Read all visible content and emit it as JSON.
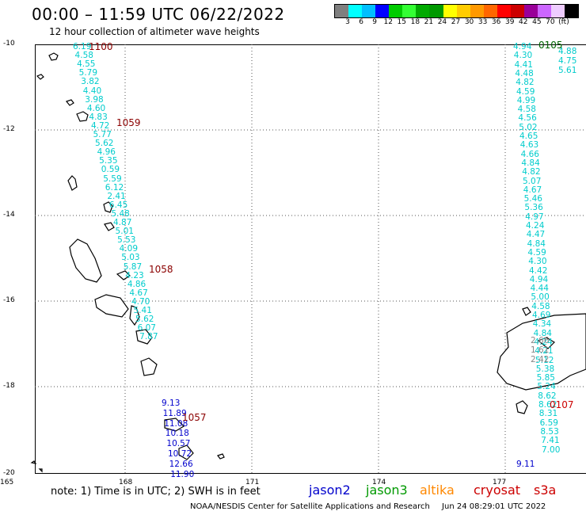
{
  "header": {
    "title": "00:00 – 11:59 UTC 06/22/2022",
    "subtitle": "12 hour collection of altimeter wave heights"
  },
  "legend": {
    "colors": [
      "#7f7f7f",
      "#00ffff",
      "#00bfff",
      "#0000ff",
      "#00cc00",
      "#33ff33",
      "#00aa00",
      "#009900",
      "#ffff00",
      "#ffcc00",
      "#ff9900",
      "#ff6600",
      "#ff0000",
      "#cc0000",
      "#990099",
      "#cc66ff",
      "#eeccff",
      "#000000"
    ],
    "labels": [
      "3",
      "6",
      "9",
      "12",
      "15",
      "18",
      "21",
      "24",
      "27",
      "30",
      "33",
      "36",
      "39",
      "42",
      "45",
      "70",
      "(ft)"
    ]
  },
  "axes": {
    "lat_labels": [
      "-10",
      "-12",
      "-14",
      "-16",
      "-18",
      "-20"
    ],
    "lon_labels": [
      "165",
      "168",
      "171",
      "174",
      "177"
    ]
  },
  "passes": [
    {
      "label": "1100",
      "color": "#8b0000"
    },
    {
      "label": "1059",
      "color": "#8b0000"
    },
    {
      "label": "1058",
      "color": "#8b0000"
    },
    {
      "label": "1057",
      "color": "#8b0000"
    },
    {
      "label": "0105",
      "color": "#006400"
    },
    {
      "label": "0107",
      "color": "#cc0000"
    }
  ],
  "track_values": {
    "west_cyan": [
      "6.19",
      "4.58",
      "4.55",
      "5.79",
      "3.82",
      "4.40",
      "3.98",
      "4.60",
      "4.83",
      "4.72",
      "5.77",
      "5.62",
      "4.96",
      "5.35",
      "0.59",
      "5.59",
      "6.12",
      "2.41",
      "6.45",
      "5.48",
      "4.87",
      "5.01",
      "5.53",
      "4.09",
      "5.03",
      "5.87",
      "4.23",
      "4.86",
      "4.67",
      "4.70",
      "5.41",
      "5.62",
      "6.07",
      "7.87"
    ],
    "west_blue": [
      "9.13",
      "11.89",
      "11.08",
      "10.18",
      "10.57",
      "10.72",
      "12.66",
      "11.90"
    ],
    "east_cyan": [
      "4.94",
      "4.30",
      "4.41",
      "4.48",
      "4.82",
      "4.59",
      "4.99",
      "4.58",
      "4.56",
      "5.02",
      "4.65",
      "4.63",
      "4.66",
      "4.84",
      "4.82",
      "5.07",
      "4.67",
      "5.46",
      "5.36",
      "4.97",
      "4.24",
      "4.47",
      "4.84",
      "4.59",
      "4.30",
      "4.42",
      "4.94",
      "4.44",
      "5.00",
      "4.58",
      "4.69",
      "4.34",
      "4.84",
      "4.24",
      "4.21",
      "5.12",
      "5.38",
      "5.85",
      "5.24",
      "8.62",
      "8.62",
      "8.31",
      "6.59",
      "8.53",
      "7.41",
      "7.00"
    ],
    "east_gray": [
      "2.66",
      "1.61",
      "2.42"
    ],
    "east_blue": [
      "9.11"
    ],
    "east_right": [
      "4.88",
      "4.75",
      "5.61"
    ]
  },
  "footer": {
    "note": "note: 1) Time is in UTC; 2) SWH is in feet",
    "satellites": [
      "jason2",
      "jason3",
      "altika",
      "cryosat",
      "s3a"
    ],
    "sat_colors": [
      "#0000cc",
      "#009900",
      "#ff8800",
      "#cc0000",
      "#cc0000"
    ],
    "credit": "NOAA/NESDIS Center for Satellite Applications and Research",
    "timestamp": "Jun 24 08:29:01 UTC 2022"
  }
}
